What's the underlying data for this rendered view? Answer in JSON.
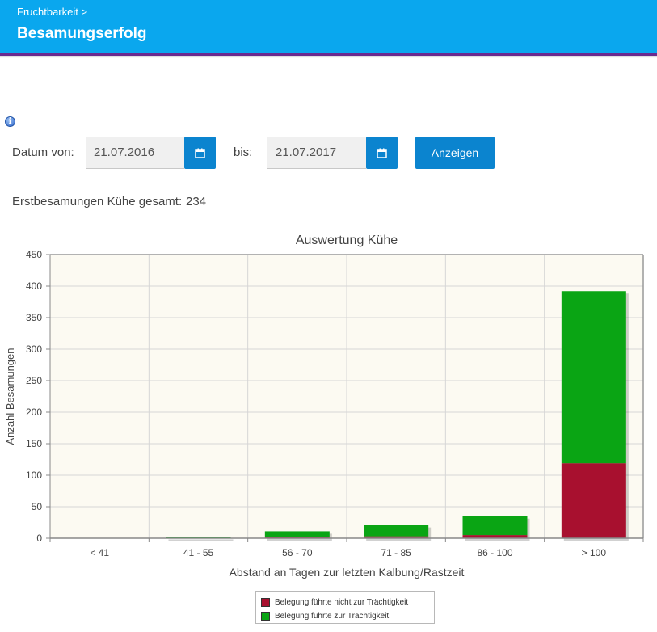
{
  "header": {
    "breadcrumb": "Fruchtbarkeit >",
    "title": "Besamungserfolg"
  },
  "icons": {
    "info": "info-icon",
    "calendar": "calendar-icon"
  },
  "colors": {
    "header_bg": "#0aa7ee",
    "header_accent": "#6a2a8f",
    "button": "#0b84cf",
    "series_not_pregnant": "#a8102f",
    "series_pregnant": "#0aa514",
    "plot_bg": "#fcfaf2"
  },
  "filter": {
    "from_label": "Datum von:",
    "from_value": "21.07.2016",
    "to_label": "bis:",
    "to_value": "21.07.2017",
    "submit_label": "Anzeigen"
  },
  "summary": {
    "label": "Erstbesamungen Kühe gesamt:",
    "value": "234"
  },
  "chart_data": {
    "type": "bar",
    "stacked": true,
    "title": "Auswertung Kühe",
    "xlabel": "Abstand an Tagen zur letzten Kalbung/Rastzeit",
    "ylabel": "Anzahl Besamungen",
    "categories": [
      "< 41",
      "41 - 55",
      "56 - 70",
      "71 - 85",
      "86 - 100",
      "> 100"
    ],
    "ylim": [
      0,
      450
    ],
    "yticks": [
      0,
      50,
      100,
      150,
      200,
      250,
      300,
      350,
      400,
      450
    ],
    "grid": true,
    "legend_position": "bottom",
    "series": [
      {
        "name": "Belegung führte nicht zur Trächtigkeit",
        "color": "#a8102f",
        "values": [
          0,
          0,
          2,
          3,
          5,
          119
        ]
      },
      {
        "name": "Belegung führte zur Trächtigkeit",
        "color": "#0aa514",
        "values": [
          0,
          2,
          9,
          18,
          30,
          273
        ]
      }
    ]
  }
}
